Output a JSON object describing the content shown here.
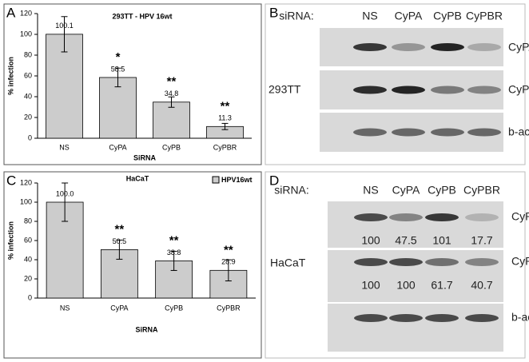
{
  "panel_labels": [
    "A",
    "B",
    "C",
    "D"
  ],
  "chart_data": [
    {
      "type": "bar",
      "title": "293TT - HPV 16wt",
      "xlabel": "SiRNA",
      "ylabel": "% infection",
      "categories": [
        "NS",
        "CyPA",
        "CyPB",
        "CyPBR"
      ],
      "series": [
        {
          "color": "#cccccc",
          "values": [
            100.1,
            58.5,
            34.8,
            11.3
          ],
          "errors": [
            17,
            9,
            5,
            3
          ],
          "significance": [
            null,
            "*",
            "**",
            "**"
          ]
        }
      ],
      "ylim": [
        0,
        120
      ],
      "yticks": [
        0,
        20,
        40,
        60,
        80,
        100,
        120
      ]
    },
    {
      "type": "bar",
      "title": "HaCaT",
      "xlabel": "SiRNA",
      "ylabel": "% infection",
      "categories": [
        "NS",
        "CyPA",
        "CyPB",
        "CyPBR"
      ],
      "series": [
        {
          "name": "HPV16wt",
          "color": "#cccccc",
          "values": [
            100.0,
            50.5,
            38.8,
            28.9
          ],
          "value_labels": [
            "100.0",
            "50.5",
            "38.8",
            "28.9"
          ],
          "errors": [
            20,
            10,
            10,
            11
          ],
          "significance": [
            null,
            "**",
            "**",
            "**"
          ]
        }
      ],
      "ylim": [
        0,
        120
      ],
      "yticks": [
        0,
        20,
        40,
        60,
        80,
        100,
        120
      ]
    }
  ],
  "blots": [
    {
      "header": "siRNA:",
      "lanes": [
        "NS",
        "CyPA",
        "CyPB",
        "CyPBR"
      ],
      "cell_line": "293TT",
      "bands": [
        "CyPA",
        "CyPB",
        "b-actin"
      ]
    },
    {
      "header": "siRNA:",
      "lanes": [
        "NS",
        "CyPA",
        "CyPB",
        "CyPBR"
      ],
      "cell_line": "HaCaT",
      "bands": [
        "CyPA",
        "CyPB",
        "b-actin"
      ],
      "quantification": [
        [
          100,
          47.5,
          101,
          17.7
        ],
        [
          100,
          100,
          61.7,
          40.7
        ]
      ]
    }
  ]
}
